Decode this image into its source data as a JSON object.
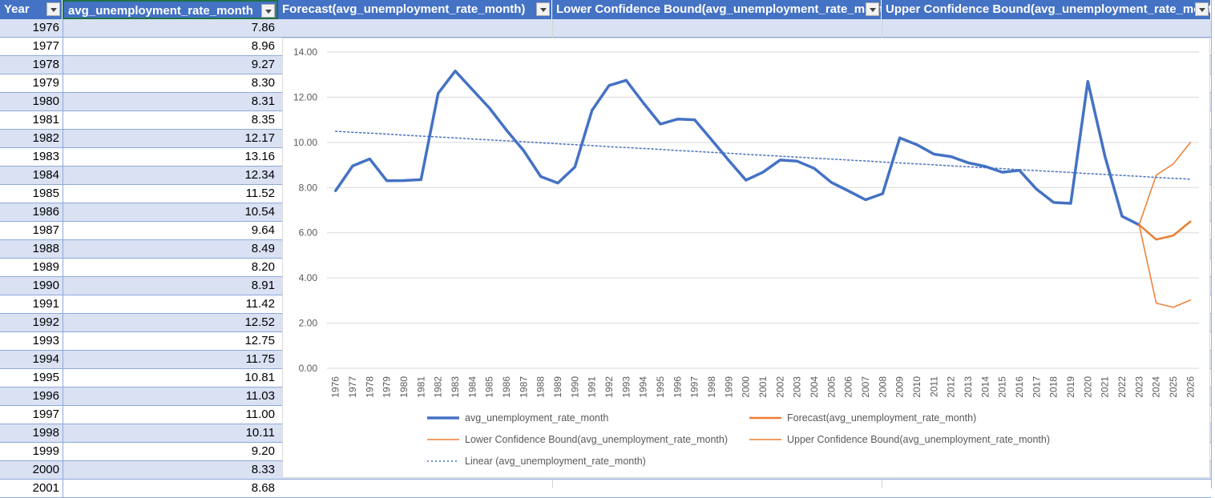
{
  "headers": [
    {
      "label": "Year"
    },
    {
      "label": "avg_unemployment_rate_month"
    },
    {
      "label": "Forecast(avg_unemployment_rate_month)"
    },
    {
      "label": "Lower Confidence Bound(avg_unemployment_rate_month)"
    },
    {
      "label": "Upper Confidence Bound(avg_unemployment_rate_month)"
    }
  ],
  "rows": [
    {
      "year": "1976",
      "value": "7.86"
    },
    {
      "year": "1977",
      "value": "8.96"
    },
    {
      "year": "1978",
      "value": "9.27"
    },
    {
      "year": "1979",
      "value": "8.30"
    },
    {
      "year": "1980",
      "value": "8.31"
    },
    {
      "year": "1981",
      "value": "8.35"
    },
    {
      "year": "1982",
      "value": "12.17"
    },
    {
      "year": "1983",
      "value": "13.16"
    },
    {
      "year": "1984",
      "value": "12.34"
    },
    {
      "year": "1985",
      "value": "11.52"
    },
    {
      "year": "1986",
      "value": "10.54"
    },
    {
      "year": "1987",
      "value": "9.64"
    },
    {
      "year": "1988",
      "value": "8.49"
    },
    {
      "year": "1989",
      "value": "8.20"
    },
    {
      "year": "1990",
      "value": "8.91"
    },
    {
      "year": "1991",
      "value": "11.42"
    },
    {
      "year": "1992",
      "value": "12.52"
    },
    {
      "year": "1993",
      "value": "12.75"
    },
    {
      "year": "1994",
      "value": "11.75"
    },
    {
      "year": "1995",
      "value": "10.81"
    },
    {
      "year": "1996",
      "value": "11.03"
    },
    {
      "year": "1997",
      "value": "11.00"
    },
    {
      "year": "1998",
      "value": "10.11"
    },
    {
      "year": "1999",
      "value": "9.20"
    },
    {
      "year": "2000",
      "value": "8.33"
    },
    {
      "year": "2001",
      "value": "8.68"
    }
  ],
  "chart_data": {
    "type": "line",
    "x": [
      1976,
      1977,
      1978,
      1979,
      1980,
      1981,
      1982,
      1983,
      1984,
      1985,
      1986,
      1987,
      1988,
      1989,
      1990,
      1991,
      1992,
      1993,
      1994,
      1995,
      1996,
      1997,
      1998,
      1999,
      2000,
      2001,
      2002,
      2003,
      2004,
      2005,
      2006,
      2007,
      2008,
      2009,
      2010,
      2011,
      2012,
      2013,
      2014,
      2015,
      2016,
      2017,
      2018,
      2019,
      2020,
      2021,
      2022,
      2023,
      2024,
      2025,
      2026
    ],
    "ylim": [
      0,
      14
    ],
    "ytick_labels": [
      "0.00",
      "2.00",
      "4.00",
      "6.00",
      "8.00",
      "10.00",
      "12.00",
      "14.00"
    ],
    "grid": true,
    "legend_position": "bottom",
    "series": [
      {
        "name": "avg_unemployment_rate_month",
        "color": "#4472C4",
        "values": [
          7.86,
          8.96,
          9.27,
          8.3,
          8.31,
          8.35,
          12.17,
          13.16,
          12.34,
          11.52,
          10.54,
          9.64,
          8.49,
          8.2,
          8.91,
          11.42,
          12.52,
          12.75,
          11.75,
          10.81,
          11.03,
          11.0,
          10.11,
          9.2,
          8.33,
          8.68,
          9.22,
          9.17,
          8.85,
          8.23,
          7.85,
          7.46,
          7.73,
          10.2,
          9.9,
          9.48,
          9.37,
          9.1,
          8.94,
          8.68,
          8.76,
          7.93,
          7.34,
          7.3,
          12.7,
          9.38,
          6.73,
          6.35,
          null,
          null,
          null
        ]
      },
      {
        "name": "Forecast(avg_unemployment_rate_month)",
        "color": "#ED7D31",
        "values": [
          null,
          null,
          null,
          null,
          null,
          null,
          null,
          null,
          null,
          null,
          null,
          null,
          null,
          null,
          null,
          null,
          null,
          null,
          null,
          null,
          null,
          null,
          null,
          null,
          null,
          null,
          null,
          null,
          null,
          null,
          null,
          null,
          null,
          null,
          null,
          null,
          null,
          null,
          null,
          null,
          null,
          null,
          null,
          null,
          null,
          null,
          null,
          6.35,
          5.7,
          5.88,
          6.5
        ]
      },
      {
        "name": "Lower Confidence Bound(avg_unemployment_rate_month)",
        "color": "#ED7D31",
        "values": [
          null,
          null,
          null,
          null,
          null,
          null,
          null,
          null,
          null,
          null,
          null,
          null,
          null,
          null,
          null,
          null,
          null,
          null,
          null,
          null,
          null,
          null,
          null,
          null,
          null,
          null,
          null,
          null,
          null,
          null,
          null,
          null,
          null,
          null,
          null,
          null,
          null,
          null,
          null,
          null,
          null,
          null,
          null,
          null,
          null,
          null,
          null,
          6.35,
          2.88,
          2.7,
          3.02
        ]
      },
      {
        "name": "Upper Confidence Bound(avg_unemployment_rate_month)",
        "color": "#ED7D31",
        "values": [
          null,
          null,
          null,
          null,
          null,
          null,
          null,
          null,
          null,
          null,
          null,
          null,
          null,
          null,
          null,
          null,
          null,
          null,
          null,
          null,
          null,
          null,
          null,
          null,
          null,
          null,
          null,
          null,
          null,
          null,
          null,
          null,
          null,
          null,
          null,
          null,
          null,
          null,
          null,
          null,
          null,
          null,
          null,
          null,
          null,
          null,
          null,
          6.35,
          8.55,
          9.05,
          10.0
        ]
      },
      {
        "name": "Linear (avg_unemployment_rate_month)",
        "color": "#4472C4",
        "trend": "linear",
        "values": [
          10.49,
          10.45,
          10.41,
          10.37,
          10.32,
          10.28,
          10.24,
          10.2,
          10.15,
          10.11,
          10.07,
          10.03,
          9.98,
          9.94,
          9.9,
          9.86,
          9.81,
          9.77,
          9.73,
          9.69,
          9.64,
          9.6,
          9.56,
          9.52,
          9.47,
          9.43,
          9.39,
          9.35,
          9.3,
          9.26,
          9.22,
          9.18,
          9.13,
          9.09,
          9.05,
          9.01,
          8.96,
          8.92,
          8.88,
          8.84,
          8.79,
          8.75,
          8.71,
          8.67,
          8.62,
          8.58,
          8.54,
          8.5,
          8.45,
          8.41,
          8.37
        ]
      }
    ]
  }
}
